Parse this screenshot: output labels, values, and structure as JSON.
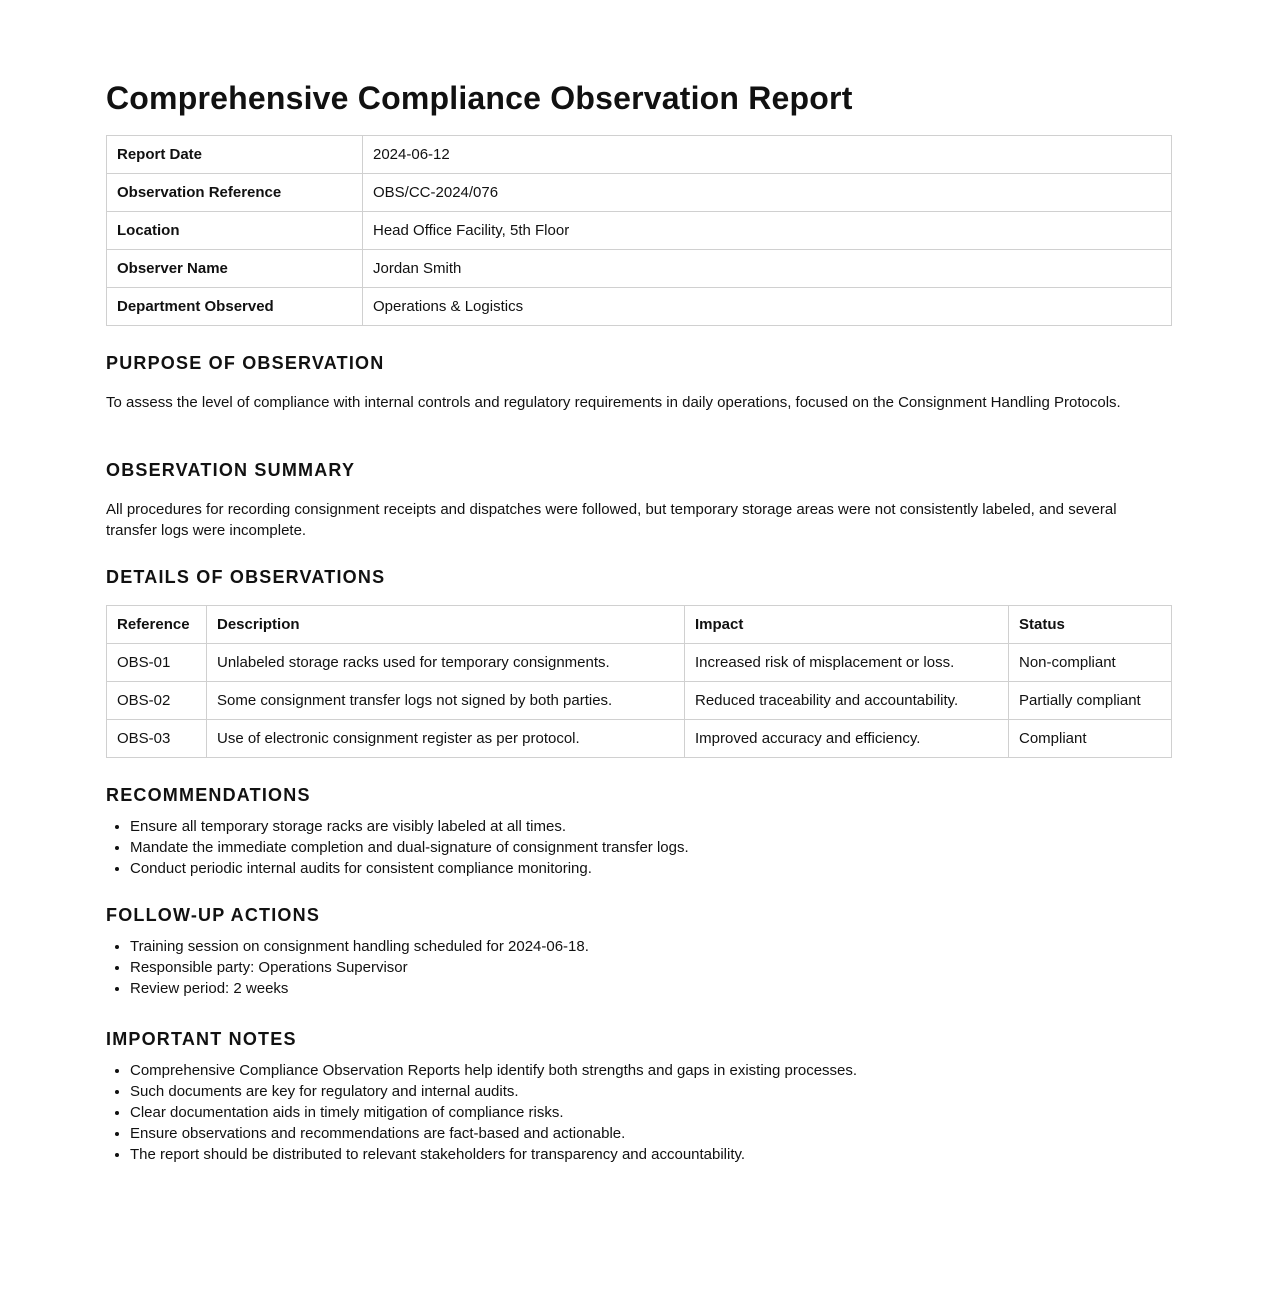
{
  "title": "Comprehensive Compliance Observation Report",
  "info": [
    {
      "label": "Report Date",
      "value": "2024-06-12"
    },
    {
      "label": "Observation Reference",
      "value": "OBS/CC-2024/076"
    },
    {
      "label": "Location",
      "value": "Head Office Facility, 5th Floor"
    },
    {
      "label": "Observer Name",
      "value": "Jordan Smith"
    },
    {
      "label": "Department Observed",
      "value": "Operations & Logistics"
    }
  ],
  "purpose": {
    "heading": "PURPOSE OF OBSERVATION",
    "text": "To assess the level of compliance with internal controls and regulatory requirements in daily operations, focused on the Consignment Handling Protocols."
  },
  "summary": {
    "heading": "OBSERVATION SUMMARY",
    "text": "All procedures for recording consignment receipts and dispatches were followed, but temporary storage areas were not consistently labeled, and several transfer logs were incomplete."
  },
  "details": {
    "heading": "DETAILS OF OBSERVATIONS",
    "columns": [
      "Reference",
      "Description",
      "Impact",
      "Status"
    ],
    "rows": [
      [
        "OBS-01",
        "Unlabeled storage racks used for temporary consignments.",
        "Increased risk of misplacement or loss.",
        "Non-compliant"
      ],
      [
        "OBS-02",
        "Some consignment transfer logs not signed by both parties.",
        "Reduced traceability and accountability.",
        "Partially compliant"
      ],
      [
        "OBS-03",
        "Use of electronic consignment register as per protocol.",
        "Improved accuracy and efficiency.",
        "Compliant"
      ]
    ]
  },
  "recommendations": {
    "heading": "RECOMMENDATIONS",
    "items": [
      "Ensure all temporary storage racks are visibly labeled at all times.",
      "Mandate the immediate completion and dual-signature of consignment transfer logs.",
      "Conduct periodic internal audits for consistent compliance monitoring."
    ]
  },
  "followup": {
    "heading": "FOLLOW-UP ACTIONS",
    "items": [
      "Training session on consignment handling scheduled for 2024-06-18.",
      "Responsible party: Operations Supervisor",
      "Review period: 2 weeks"
    ]
  },
  "notes": {
    "heading": "IMPORTANT NOTES",
    "items": [
      "Comprehensive Compliance Observation Reports help identify both strengths and gaps in existing processes.",
      "Such documents are key for regulatory and internal audits.",
      "Clear documentation aids in timely mitigation of compliance risks.",
      "Ensure observations and recommendations are fact-based and actionable.",
      "The report should be distributed to relevant stakeholders for transparency and accountability."
    ]
  }
}
